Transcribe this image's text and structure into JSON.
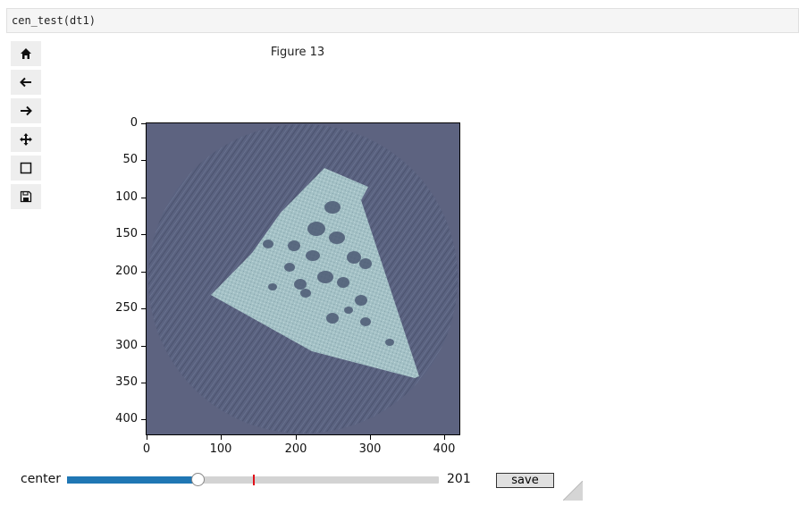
{
  "code_cell": {
    "text": "cen_test(dt1)"
  },
  "toolbar": {
    "buttons": [
      {
        "name": "home-button",
        "icon": "home-icon"
      },
      {
        "name": "back-button",
        "icon": "arrow-left-icon"
      },
      {
        "name": "forward-button",
        "icon": "arrow-right-icon"
      },
      {
        "name": "pan-button",
        "icon": "move-icon"
      },
      {
        "name": "zoom-button",
        "icon": "square-icon"
      },
      {
        "name": "save-figure-button",
        "icon": "floppy-icon"
      }
    ]
  },
  "figure": {
    "title": "Figure 13",
    "image_colors": {
      "background": "#5d6380",
      "sample": "#a6c3c7"
    },
    "x_ticks": [
      "0",
      "100",
      "200",
      "300",
      "400"
    ],
    "y_ticks": [
      "0",
      "50",
      "100",
      "150",
      "200",
      "250",
      "300",
      "350",
      "400"
    ],
    "x_tick_values": [
      0,
      100,
      200,
      300,
      400
    ],
    "y_tick_values": [
      0,
      50,
      100,
      150,
      200,
      250,
      300,
      350,
      400
    ],
    "xlim": [
      0,
      420
    ],
    "ylim": [
      0,
      420
    ]
  },
  "slider": {
    "label": "center",
    "value": "201",
    "fraction": 0.35,
    "marker_fraction": 0.5,
    "fill_color": "#2077b4",
    "marker_color": "#e0101a"
  },
  "save_button": {
    "label": "save"
  }
}
